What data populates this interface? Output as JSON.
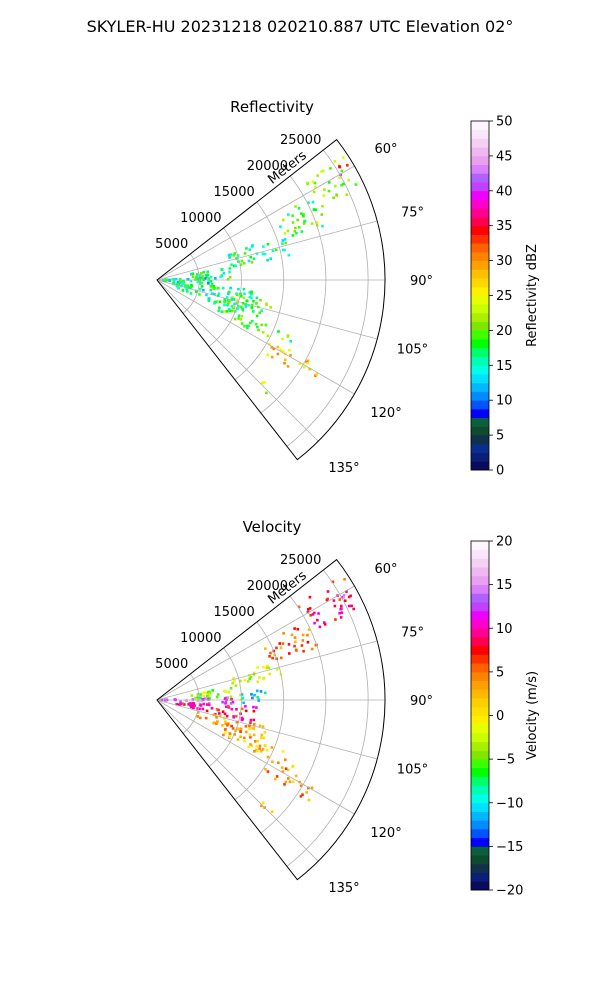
{
  "suptitle": "SKYLER-HU  20231218  020210.887 UTC Elevation 02°",
  "chart_data": [
    {
      "type": "heatmap",
      "subtype": "polar-sector (PPI)",
      "title": "Reflectivity",
      "radial_label": "Meters",
      "r_ticks": [
        5000,
        10000,
        15000,
        20000,
        25000
      ],
      "r_tick_labels": [
        "5000",
        "10000",
        "15000",
        "20000",
        "25000"
      ],
      "r_max": 27000,
      "azimuth_ticks": [
        60,
        75,
        90,
        105,
        120,
        135
      ],
      "azimuth_tick_labels": [
        "60°",
        "75°",
        "90°",
        "105°",
        "120°",
        "135°"
      ],
      "azimuth_range": [
        52,
        142
      ],
      "grid": true,
      "colorbar": {
        "label": "Reflectivity dBZ",
        "range": [
          0,
          50
        ],
        "ticks": [
          0,
          5,
          10,
          15,
          20,
          25,
          30,
          35,
          40,
          45,
          50
        ],
        "tick_labels": [
          "0",
          "5",
          "10",
          "15",
          "20",
          "25",
          "30",
          "35",
          "40",
          "45",
          "50"
        ],
        "colors": [
          "#0b0b5e",
          "#0b1f7a",
          "#0a2e8f",
          "#11304a",
          "#0e4a2e",
          "#0c5f3c",
          "#0000ff",
          "#0055ff",
          "#008cff",
          "#00b8ff",
          "#00e0ff",
          "#00ffe6",
          "#00ffb4",
          "#00ff6a",
          "#00ff00",
          "#3cff00",
          "#7fe600",
          "#a8f000",
          "#c8ff00",
          "#e6ff00",
          "#fff000",
          "#ffd800",
          "#ffc000",
          "#ffa000",
          "#ff8200",
          "#ff6000",
          "#ff3000",
          "#ff0000",
          "#ff0050",
          "#ff0090",
          "#ff00cc",
          "#f000ff",
          "#c040ff",
          "#b060ff",
          "#d880ff",
          "#e8a0f0",
          "#f0b8f0",
          "#f5d0f5",
          "#fae6fa",
          "#fff5ff"
        ]
      },
      "echo_regions": [
        {
          "az": [
            56,
            66
          ],
          "r": [
            21000,
            26500
          ],
          "level": 0.42
        },
        {
          "az": [
            58,
            62
          ],
          "r": [
            25000,
            26800
          ],
          "level": 0.75
        },
        {
          "az": [
            62,
            72
          ],
          "r": [
            15000,
            21000
          ],
          "level": 0.38
        },
        {
          "az": [
            70,
            80
          ],
          "r": [
            9000,
            16000
          ],
          "level": 0.33
        },
        {
          "az": [
            80,
            90
          ],
          "r": [
            4000,
            9000
          ],
          "level": 0.34
        },
        {
          "az": [
            86,
            96
          ],
          "r": [
            500,
            7000
          ],
          "level": 0.3
        },
        {
          "az": [
            96,
            112
          ],
          "r": [
            2000,
            12000
          ],
          "level": 0.32
        },
        {
          "az": [
            100,
            110
          ],
          "r": [
            8000,
            14000
          ],
          "level": 0.38
        },
        {
          "az": [
            112,
            118
          ],
          "r": [
            8000,
            18000
          ],
          "level": 0.4
        },
        {
          "az": [
            118,
            124
          ],
          "r": [
            15000,
            22000
          ],
          "level": 0.55
        },
        {
          "az": [
            132,
            136
          ],
          "r": [
            17000,
            19000
          ],
          "level": 0.45
        }
      ]
    },
    {
      "type": "heatmap",
      "subtype": "polar-sector (PPI)",
      "title": "Velocity",
      "radial_label": "Meters",
      "r_ticks": [
        5000,
        10000,
        15000,
        20000,
        25000
      ],
      "r_tick_labels": [
        "5000",
        "10000",
        "15000",
        "20000",
        "25000"
      ],
      "r_max": 27000,
      "azimuth_ticks": [
        60,
        75,
        90,
        105,
        120,
        135
      ],
      "azimuth_tick_labels": [
        "60°",
        "75°",
        "90°",
        "105°",
        "120°",
        "135°"
      ],
      "azimuth_range": [
        52,
        142
      ],
      "grid": true,
      "colorbar": {
        "label": "Velocity (m/s)",
        "range": [
          -20,
          20
        ],
        "ticks": [
          -20,
          -15,
          -10,
          -5,
          0,
          5,
          10,
          15,
          20
        ],
        "tick_labels": [
          "−20",
          "−15",
          "−10",
          "−5",
          "0",
          "5",
          "10",
          "15",
          "20"
        ],
        "colors": [
          "#0b0b5e",
          "#0b1f7a",
          "#11304a",
          "#0e4a2e",
          "#0c5f3c",
          "#0000ff",
          "#0055ff",
          "#008cff",
          "#00b8ff",
          "#00e0ff",
          "#00ffe6",
          "#00ffb4",
          "#00ff6a",
          "#00ff00",
          "#3cff00",
          "#7fe600",
          "#a8f000",
          "#c8ff00",
          "#e6ff00",
          "#fff000",
          "#ffe000",
          "#ffd000",
          "#ffb800",
          "#ffa000",
          "#ff8200",
          "#ff6000",
          "#ff3000",
          "#ff0000",
          "#ff0050",
          "#ff0090",
          "#ff00cc",
          "#f000ff",
          "#c040ff",
          "#b060ff",
          "#d880ff",
          "#e8a0f0",
          "#f0b8f0",
          "#f5d0f5",
          "#fae6fa",
          "#fff5ff"
        ]
      },
      "echo_regions": [
        {
          "az": [
            56,
            66
          ],
          "r": [
            20000,
            26500
          ],
          "level": 0.7
        },
        {
          "az": [
            58,
            62
          ],
          "r": [
            25000,
            26800
          ],
          "level": 0.8
        },
        {
          "az": [
            62,
            72
          ],
          "r": [
            14000,
            20000
          ],
          "level": 0.63
        },
        {
          "az": [
            72,
            80
          ],
          "r": [
            9000,
            15000
          ],
          "level": 0.45
        },
        {
          "az": [
            80,
            90
          ],
          "r": [
            4000,
            10000
          ],
          "level": 0.4
        },
        {
          "az": [
            84,
            92
          ],
          "r": [
            10000,
            13000
          ],
          "level": 0.25
        },
        {
          "az": [
            88,
            94
          ],
          "r": [
            500,
            9000
          ],
          "level": 0.82
        },
        {
          "az": [
            94,
            104
          ],
          "r": [
            2000,
            12000
          ],
          "level": 0.72
        },
        {
          "az": [
            104,
            114
          ],
          "r": [
            5000,
            14000
          ],
          "level": 0.58
        },
        {
          "az": [
            112,
            118
          ],
          "r": [
            8000,
            18000
          ],
          "level": 0.55
        },
        {
          "az": [
            118,
            124
          ],
          "r": [
            15000,
            22000
          ],
          "level": 0.6
        },
        {
          "az": [
            132,
            136
          ],
          "r": [
            17000,
            19000
          ],
          "level": 0.55
        }
      ]
    }
  ]
}
